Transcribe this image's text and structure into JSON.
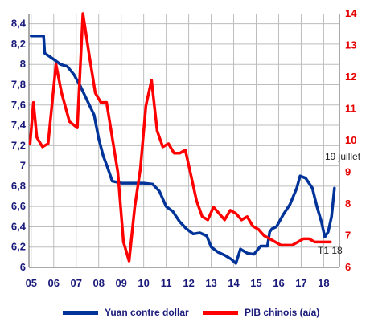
{
  "colors": {
    "yuan": "#003399",
    "gdp": "#ff0000",
    "left_ticks": "#1a1a7a",
    "right_ticks": "#e60000",
    "grid": "#bdbdbd"
  },
  "chart_data": {
    "type": "line",
    "grid": true,
    "legend_position": "bottom",
    "x_ticks": [
      "05",
      "06",
      "07",
      "08",
      "09",
      "10",
      "11",
      "12",
      "13",
      "14",
      "15",
      "16",
      "17",
      "18"
    ],
    "x_range": [
      2004.9,
      2018.7
    ],
    "y_left": {
      "range": [
        6.0,
        8.5
      ],
      "ticks": [
        "6",
        "6,2",
        "6,4",
        "6,6",
        "6,8",
        "7",
        "7,2",
        "7,4",
        "7,6",
        "7,8",
        "8",
        "8,2",
        "8,4"
      ]
    },
    "y_right": {
      "range": [
        6,
        14
      ],
      "ticks": [
        "6",
        "7",
        "8",
        "9",
        "10",
        "11",
        "12",
        "13",
        "14"
      ]
    },
    "annotations": [
      "19 juillet",
      "T1 18"
    ],
    "series": [
      {
        "name": "Yuan contre dollar",
        "axis": "left",
        "x": [
          2005.0,
          2005.55,
          2005.6,
          2005.8,
          2006.0,
          2006.3,
          2006.6,
          2006.9,
          2007.2,
          2007.5,
          2007.8,
          2008.0,
          2008.2,
          2008.4,
          2008.6,
          2008.8,
          2009.0,
          2009.5,
          2010.0,
          2010.4,
          2010.7,
          2011.0,
          2011.3,
          2011.6,
          2011.9,
          2012.2,
          2012.5,
          2012.8,
          2013.0,
          2013.3,
          2013.6,
          2013.9,
          2014.1,
          2014.3,
          2014.6,
          2014.9,
          2015.2,
          2015.5,
          2015.6,
          2015.7,
          2015.9,
          2016.2,
          2016.5,
          2016.8,
          2016.95,
          2017.2,
          2017.5,
          2017.7,
          2017.9,
          2018.05,
          2018.2,
          2018.35,
          2018.48
        ],
        "y": [
          8.28,
          8.28,
          8.11,
          8.08,
          8.05,
          8.0,
          7.98,
          7.9,
          7.78,
          7.64,
          7.5,
          7.27,
          7.1,
          6.98,
          6.85,
          6.84,
          6.83,
          6.83,
          6.83,
          6.82,
          6.75,
          6.6,
          6.55,
          6.45,
          6.38,
          6.33,
          6.34,
          6.31,
          6.2,
          6.15,
          6.12,
          6.08,
          6.04,
          6.18,
          6.14,
          6.13,
          6.21,
          6.21,
          6.35,
          6.38,
          6.4,
          6.52,
          6.62,
          6.78,
          6.9,
          6.88,
          6.78,
          6.6,
          6.45,
          6.3,
          6.35,
          6.5,
          6.78
        ]
      },
      {
        "name": "PIB chinois (a/a)",
        "axis": "right",
        "x": [
          2004.95,
          2005.1,
          2005.25,
          2005.5,
          2005.75,
          2006.1,
          2006.35,
          2006.7,
          2007.05,
          2007.3,
          2007.6,
          2007.85,
          2008.1,
          2008.35,
          2008.6,
          2008.85,
          2009.1,
          2009.35,
          2009.6,
          2009.85,
          2010.1,
          2010.35,
          2010.6,
          2010.85,
          2011.1,
          2011.35,
          2011.6,
          2011.85,
          2012.1,
          2012.35,
          2012.6,
          2012.85,
          2013.1,
          2013.35,
          2013.6,
          2013.85,
          2014.1,
          2014.35,
          2014.6,
          2014.85,
          2015.1,
          2015.35,
          2015.6,
          2015.85,
          2016.1,
          2016.35,
          2016.6,
          2016.85,
          2017.1,
          2017.35,
          2017.6,
          2017.85,
          2018.1,
          2018.3
        ],
        "y": [
          9.9,
          11.2,
          10.1,
          9.8,
          9.9,
          12.4,
          11.5,
          10.6,
          10.4,
          14.0,
          12.6,
          11.5,
          11.2,
          11.2,
          10.1,
          9.0,
          6.8,
          6.2,
          7.9,
          9.1,
          11.1,
          11.9,
          10.3,
          9.8,
          9.9,
          9.6,
          9.6,
          9.7,
          8.9,
          8.1,
          7.6,
          7.5,
          7.9,
          7.7,
          7.5,
          7.8,
          7.7,
          7.5,
          7.6,
          7.3,
          7.2,
          7.0,
          6.9,
          6.8,
          6.7,
          6.7,
          6.7,
          6.8,
          6.9,
          6.9,
          6.8,
          6.8,
          6.8,
          6.8
        ]
      }
    ]
  },
  "legend": {
    "yuan_label": "Yuan contre dollar",
    "gdp_label": "PIB chinois (a/a)"
  }
}
